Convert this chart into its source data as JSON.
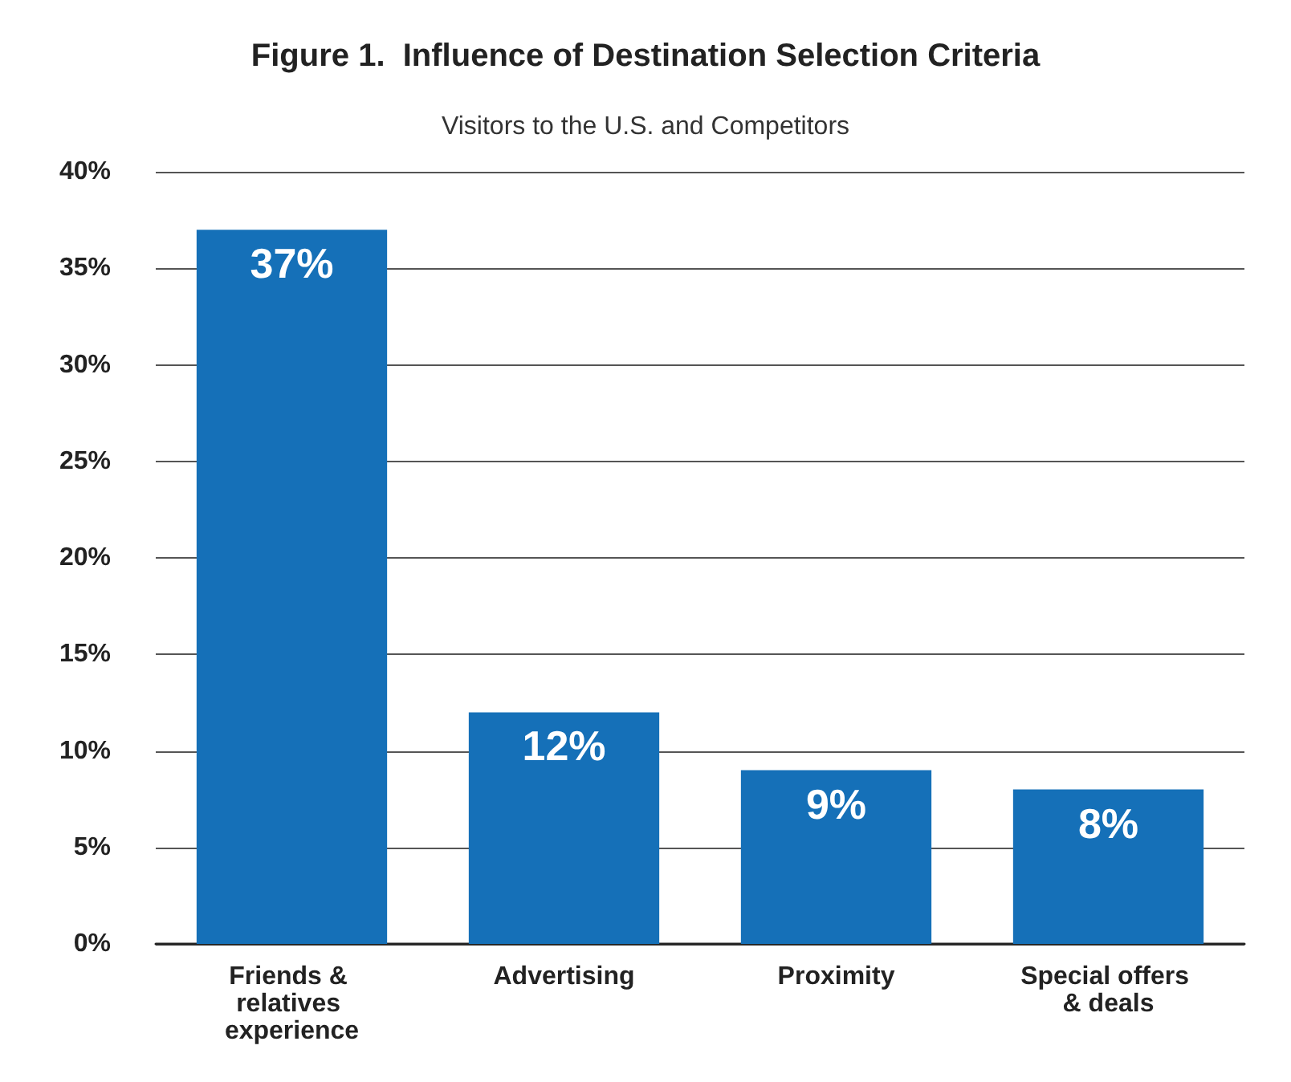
{
  "chart_data": {
    "type": "bar",
    "title": "Figure 1.  Influence of Destination Selection Criteria",
    "subtitle": "Visitors to the U.S. and Competitors",
    "categories": [
      "Friends & relatives experience",
      "Advertising",
      "Proximity",
      "Special offers & deals"
    ],
    "values": [
      37,
      12,
      9,
      8
    ],
    "color": "#1570b8",
    "value_labels": [
      "37%",
      "12%",
      "9%",
      "8%"
    ],
    "ylim": [
      0,
      40
    ],
    "yticks": [
      {
        "value": 0,
        "label": "0%"
      },
      {
        "value": 5,
        "label": "5%"
      },
      {
        "value": 10,
        "label": "10%"
      },
      {
        "value": 15,
        "label": "15%"
      },
      {
        "value": 20,
        "label": "20%"
      },
      {
        "value": 25,
        "label": "25%"
      },
      {
        "value": 30,
        "label": "30%"
      },
      {
        "value": 35,
        "label": "35%"
      },
      {
        "value": 40,
        "label": "40%"
      }
    ],
    "grid": "y"
  }
}
